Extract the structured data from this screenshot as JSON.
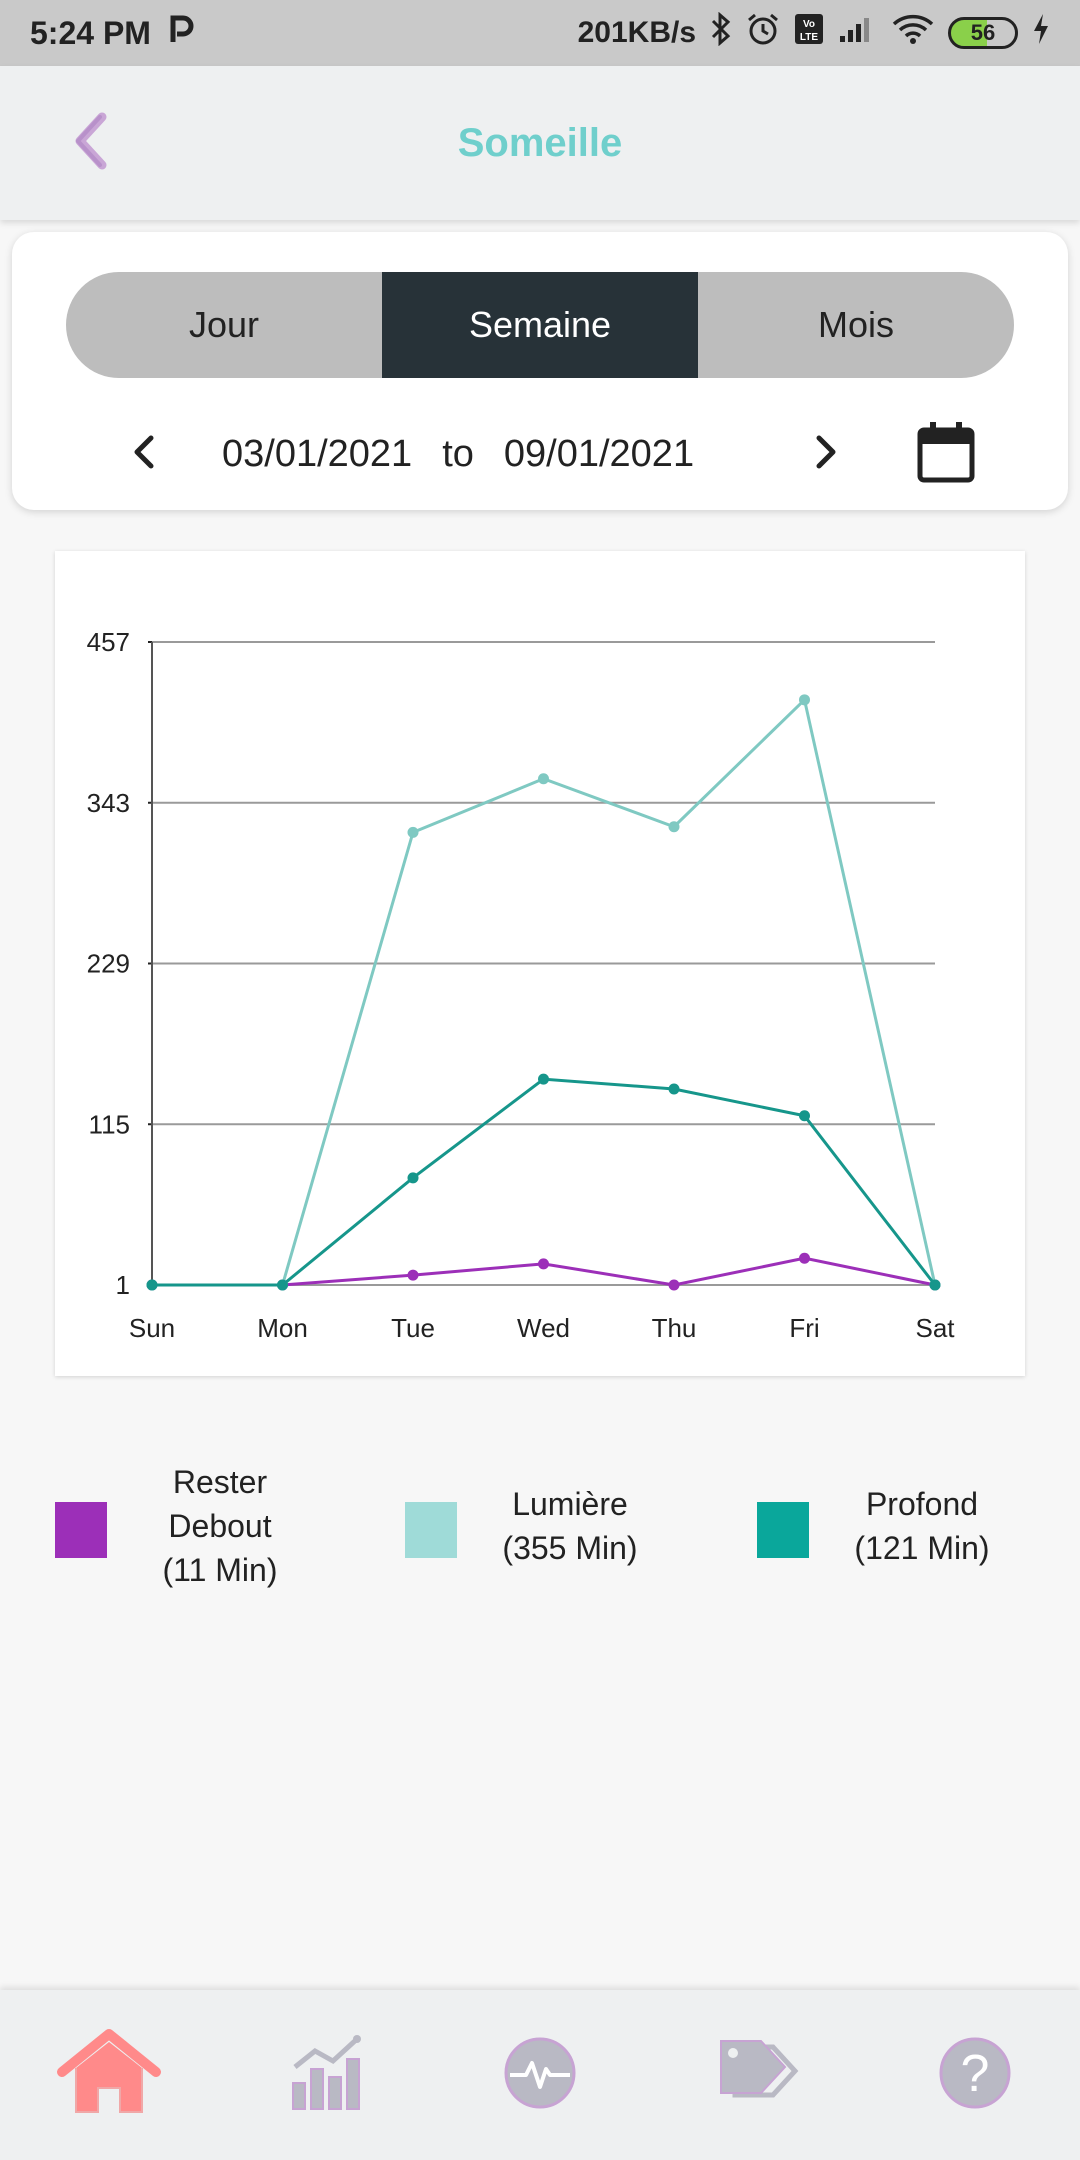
{
  "status_bar": {
    "time": "5:24 PM",
    "network_speed": "201KB/s",
    "battery_level": "56",
    "icons": [
      "parking-icon",
      "bluetooth-icon",
      "alarm-icon",
      "volte-icon",
      "signal-icon",
      "wifi-icon",
      "battery-icon",
      "charging-icon"
    ]
  },
  "header": {
    "title": "Someille",
    "back_icon": "chevron-left-icon",
    "title_color": "#6fcfcc"
  },
  "period_tabs": {
    "items": [
      {
        "label": "Jour",
        "active": false
      },
      {
        "label": "Semaine",
        "active": true
      },
      {
        "label": "Mois",
        "active": false
      }
    ]
  },
  "date_range": {
    "from": "03/01/2021",
    "separator": "to",
    "to": "09/01/2021",
    "prev_icon": "chevron-left-icon",
    "next_icon": "chevron-right-icon",
    "calendar_icon": "calendar-icon"
  },
  "chart_data": {
    "type": "line",
    "x": [
      "Sun",
      "Mon",
      "Tue",
      "Wed",
      "Thu",
      "Fri",
      "Sat"
    ],
    "yticks": [
      1,
      115,
      229,
      343,
      457
    ],
    "ylim": [
      1,
      457
    ],
    "grid": true,
    "series": [
      {
        "name": "Rester Debout",
        "color": "#9c2fb8",
        "values": [
          1,
          1,
          8,
          16,
          1,
          20,
          1
        ]
      },
      {
        "name": "Lumière",
        "color": "#7fc9c2",
        "values": [
          1,
          1,
          322,
          360,
          326,
          416,
          1
        ]
      },
      {
        "name": "Profond",
        "color": "#16968b",
        "values": [
          1,
          1,
          77,
          147,
          140,
          121,
          1
        ]
      }
    ]
  },
  "legend": {
    "items": [
      {
        "line1": "Rester",
        "line2": "Debout",
        "line3": "(11 Min)",
        "color": "#9c2fb8"
      },
      {
        "line1": "Lumière",
        "line2": "(355 Min)",
        "color": "#9fdbd8"
      },
      {
        "line1": "Profond",
        "line2": "(121 Min)",
        "color": "#0aa79b"
      }
    ]
  },
  "bottom_nav": {
    "items": [
      {
        "icon": "home-icon",
        "active": true,
        "color": "#ff8a8a"
      },
      {
        "icon": "stats-icon",
        "active": false
      },
      {
        "icon": "heartbeat-icon",
        "active": false
      },
      {
        "icon": "tags-icon",
        "active": false
      },
      {
        "icon": "help-icon",
        "active": false
      }
    ]
  }
}
